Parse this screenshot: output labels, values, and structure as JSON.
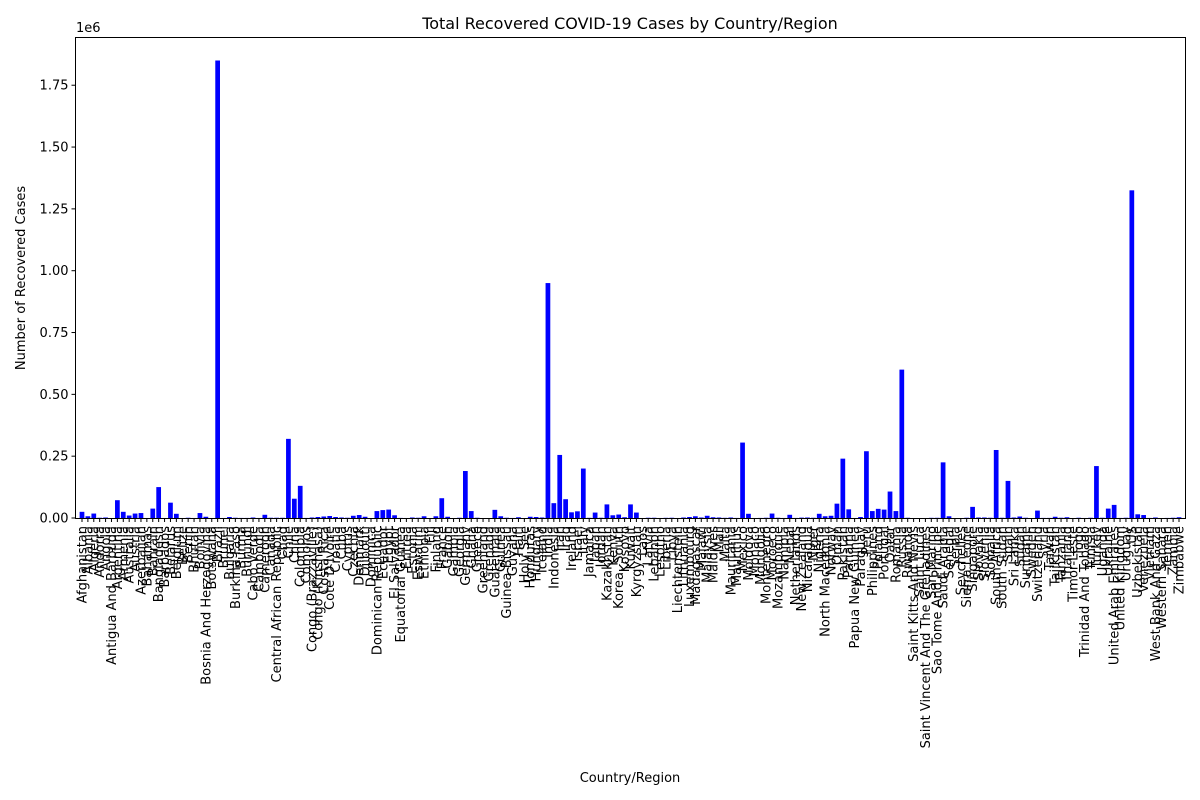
{
  "chart_data": {
    "type": "bar",
    "title": "Total Recovered COVID-19 Cases by Country/Region",
    "xlabel": "Country/Region",
    "ylabel": "Number of Recovered Cases",
    "y_offset_label": "1e6",
    "ylim": [
      0,
      1943000
    ],
    "yticks": [
      0,
      250000,
      500000,
      750000,
      1000000,
      1250000,
      1500000,
      1750000
    ],
    "ytick_labels": [
      "0.00",
      "0.25",
      "0.50",
      "0.75",
      "1.00",
      "1.25",
      "1.50",
      "1.75"
    ],
    "bar_color": "#0000ff",
    "grid": false,
    "categories": [
      "Afghanistan",
      "Albania",
      "Algeria",
      "Andorra",
      "Angola",
      "Antigua And Barbuda",
      "Argentina",
      "Armenia",
      "Australia",
      "Austria",
      "Azerbaijan",
      "Bahamas",
      "Bahrain",
      "Bangladesh",
      "Barbados",
      "Belarus",
      "Belgium",
      "Belize",
      "Benin",
      "Bhutan",
      "Bolivia",
      "Bosnia And Herzegovina",
      "Botswana",
      "Brazil",
      "Brunei",
      "Bulgaria",
      "Burkina Faso",
      "Burma",
      "Burundi",
      "Cabo Verde",
      "Cambodia",
      "Cameroon",
      "Canada",
      "Central African Republic",
      "Chad",
      "Chile",
      "China",
      "Colombia",
      "Comoros",
      "Congo (Brazzaville)",
      "Congo (Kinshasa)",
      "Costa Rica",
      "Cote D'Ivoire",
      "Croatia",
      "Cuba",
      "Cyprus",
      "Czechia",
      "Denmark",
      "Djibouti",
      "Dominica",
      "Dominican Republic",
      "Ecuador",
      "Egypt",
      "El Salvador",
      "Equatorial Guinea",
      "Eritrea",
      "Estonia",
      "Eswatini",
      "Ethiopia",
      "Fiji",
      "Finland",
      "France",
      "Gabon",
      "Gambia",
      "Georgia",
      "Germany",
      "Ghana",
      "Greece",
      "Greenland",
      "Grenada",
      "Guatemala",
      "Guinea",
      "Guinea-Bissau",
      "Guyana",
      "Haiti",
      "Holy See",
      "Honduras",
      "Hungary",
      "Iceland",
      "India",
      "Indonesia",
      "Iran",
      "Iraq",
      "Ireland",
      "Israel",
      "Italy",
      "Jamaica",
      "Japan",
      "Jordan",
      "Kazakhstan",
      "Kenya",
      "Korea, South",
      "Kosovo",
      "Kuwait",
      "Kyrgyzstan",
      "Laos",
      "Latvia",
      "Lebanon",
      "Lesotho",
      "Liberia",
      "Libya",
      "Liechtenstein",
      "Lithuania",
      "Luxembourg",
      "Madagascar",
      "Malawi",
      "Malaysia",
      "Maldives",
      "Mali",
      "Malta",
      "Mauritania",
      "Mauritius",
      "Mexico",
      "Moldova",
      "Monaco",
      "Mongolia",
      "Montenegro",
      "Morocco",
      "Mozambique",
      "Namibia",
      "Nepal",
      "Netherlands",
      "New Zealand",
      "Nicaragua",
      "Niger",
      "Nigeria",
      "North Macedonia",
      "Norway",
      "Oman",
      "Pakistan",
      "Panama",
      "Papua New Guinea",
      "Paraguay",
      "Peru",
      "Philippines",
      "Poland",
      "Portugal",
      "Qatar",
      "Romania",
      "Russia",
      "Rwanda",
      "Saint Kitts And Nevis",
      "Saint Lucia",
      "Saint Vincent And The Grenadines",
      "San Marino",
      "Sao Tome And Principe",
      "Saudi Arabia",
      "Senegal",
      "Serbia",
      "Seychelles",
      "Sierra Leone",
      "Singapore",
      "Slovakia",
      "Slovenia",
      "Somalia",
      "South Africa",
      "South Sudan",
      "Spain",
      "Sri Lanka",
      "Sudan",
      "Suriname",
      "Sweden",
      "Switzerland",
      "Syria",
      "Taiwan",
      "Tajikistan",
      "Tanzania",
      "Thailand",
      "Timor-Leste",
      "Togo",
      "Trinidad And Tobago",
      "Tunisia",
      "Turkey",
      "Uganda",
      "Ukraine",
      "United Arab Emirates",
      "United Kingdom",
      "Uruguay",
      "US",
      "Uzbekistan",
      "Venezuela",
      "Vietnam",
      "West Bank And Gaza",
      "Western Sahara",
      "Yemen",
      "Zambia",
      "Zimbabwe"
    ],
    "values": [
      25000,
      7000,
      18000,
      1000,
      2000,
      0,
      72000,
      25000,
      10000,
      18000,
      20000,
      100,
      38000,
      125000,
      100,
      62000,
      17000,
      30,
      1000,
      100,
      20000,
      5000,
      30,
      1850000,
      100,
      4000,
      1000,
      300,
      300,
      2000,
      200,
      13000,
      1000,
      1000,
      900,
      320000,
      78000,
      130000,
      300,
      2000,
      4000,
      6000,
      8000,
      4000,
      2000,
      1000,
      9000,
      12000,
      5000,
      0,
      28000,
      32000,
      34000,
      11000,
      400,
      100,
      2000,
      1000,
      7000,
      20,
      7000,
      80000,
      5000,
      30,
      1000,
      190000,
      28000,
      1000,
      10,
      20,
      33000,
      7000,
      1000,
      200,
      3000,
      10,
      5000,
      4000,
      2000,
      950000,
      60000,
      255000,
      76000,
      23000,
      27000,
      200000,
      800,
      22000,
      1000,
      55000,
      11000,
      14000,
      3000,
      55000,
      22000,
      20,
      1000,
      1000,
      100,
      700,
      1000,
      80,
      2000,
      4000,
      7000,
      2000,
      9000,
      3000,
      2000,
      700,
      2000,
      300,
      305000,
      17000,
      90,
      300,
      1000,
      18000,
      1000,
      200,
      13000,
      300,
      1500,
      2000,
      1000,
      17000,
      7000,
      9000,
      58000,
      240000,
      35000,
      100,
      4000,
      270000,
      28000,
      37000,
      34000,
      107000,
      28000,
      600000,
      1000,
      15,
      20,
      50,
      700,
      800,
      225000,
      7000,
      0,
      10,
      1000,
      45000,
      2000,
      2000,
      1000,
      275000,
      1000,
      150000,
      2000,
      6000,
      1000,
      0,
      30000,
      400,
      400,
      5000,
      1000,
      3000,
      20,
      1000,
      100,
      1000,
      210000,
      1000,
      38000,
      53000,
      300,
      1000,
      1325000,
      15000,
      12000,
      300,
      2000,
      10,
      300,
      1000,
      3000
    ]
  }
}
